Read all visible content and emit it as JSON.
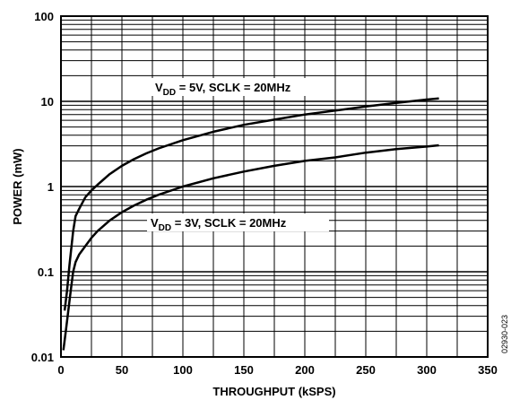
{
  "chart_data": {
    "type": "line",
    "xlabel": "THROUGHPUT (kSPS)",
    "ylabel": "POWER (mW)",
    "xlim": [
      0,
      350
    ],
    "ylim": [
      0.01,
      100
    ],
    "yscale": "log",
    "grid": true,
    "x_ticks": [
      "0",
      "50",
      "100",
      "150",
      "200",
      "250",
      "300",
      "350"
    ],
    "y_ticks": [
      "0.01",
      "0.1",
      "1",
      "10",
      "100"
    ],
    "series": [
      {
        "name": "VDD = 5V, SCLK = 20MHz",
        "label_main": "V",
        "label_sub": "DD",
        "label_rest": " = 5V, SCLK = 20MHz",
        "points": [
          [
            3,
            0.035
          ],
          [
            5,
            0.06
          ],
          [
            7,
            0.12
          ],
          [
            10,
            0.3
          ],
          [
            12,
            0.45
          ],
          [
            15,
            0.55
          ],
          [
            20,
            0.75
          ],
          [
            25,
            0.9
          ],
          [
            30,
            1.05
          ],
          [
            40,
            1.4
          ],
          [
            50,
            1.75
          ],
          [
            60,
            2.1
          ],
          [
            70,
            2.45
          ],
          [
            80,
            2.8
          ],
          [
            100,
            3.5
          ],
          [
            125,
            4.4
          ],
          [
            150,
            5.3
          ],
          [
            175,
            6.1
          ],
          [
            200,
            7.0
          ],
          [
            225,
            7.8
          ],
          [
            250,
            8.7
          ],
          [
            275,
            9.6
          ],
          [
            300,
            10.5
          ],
          [
            310,
            10.8
          ]
        ]
      },
      {
        "name": "VDD = 3V, SCLK = 20MHz",
        "label_main": "V",
        "label_sub": "DD",
        "label_rest": " = 3V, SCLK = 20MHz",
        "points": [
          [
            2,
            0.012
          ],
          [
            4,
            0.02
          ],
          [
            6,
            0.035
          ],
          [
            8,
            0.06
          ],
          [
            10,
            0.1
          ],
          [
            12,
            0.13
          ],
          [
            15,
            0.16
          ],
          [
            20,
            0.2
          ],
          [
            25,
            0.25
          ],
          [
            30,
            0.3
          ],
          [
            40,
            0.4
          ],
          [
            50,
            0.5
          ],
          [
            60,
            0.6
          ],
          [
            70,
            0.7
          ],
          [
            80,
            0.8
          ],
          [
            100,
            1.0
          ],
          [
            125,
            1.25
          ],
          [
            150,
            1.5
          ],
          [
            175,
            1.75
          ],
          [
            200,
            2.0
          ],
          [
            225,
            2.2
          ],
          [
            250,
            2.5
          ],
          [
            275,
            2.75
          ],
          [
            300,
            2.95
          ],
          [
            310,
            3.05
          ]
        ]
      }
    ],
    "figure_id": "02930-023"
  }
}
